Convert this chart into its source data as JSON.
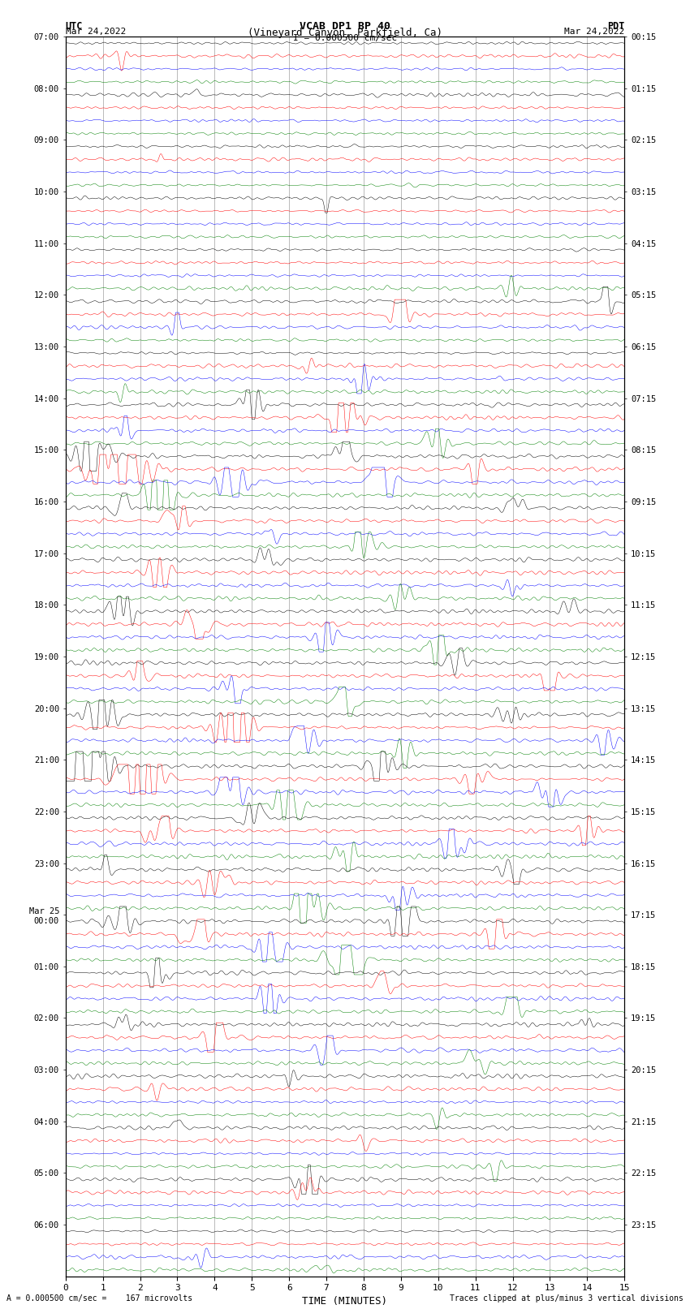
{
  "title_line1": "VCAB DP1 BP 40",
  "title_line2": "(Vineyard Canyon, Parkfield, Ca)",
  "scale_label": "I = 0.000500 cm/sec",
  "left_header": "UTC",
  "left_date": "Mar 24,2022",
  "right_header": "PDT",
  "right_date": "Mar 24,2022",
  "xlabel": "TIME (MINUTES)",
  "footer_left": "A = 0.000500 cm/sec =    167 microvolts",
  "footer_right": "Traces clipped at plus/minus 3 vertical divisions",
  "trace_colors": [
    "black",
    "red",
    "blue",
    "green"
  ],
  "x_ticks": [
    0,
    1,
    2,
    3,
    4,
    5,
    6,
    7,
    8,
    9,
    10,
    11,
    12,
    13,
    14,
    15
  ],
  "background_color": "white",
  "fig_width": 8.5,
  "fig_height": 16.13,
  "left_label_times": [
    "07:00",
    "08:00",
    "09:00",
    "10:00",
    "11:00",
    "12:00",
    "13:00",
    "14:00",
    "15:00",
    "16:00",
    "17:00",
    "18:00",
    "19:00",
    "20:00",
    "21:00",
    "22:00",
    "23:00",
    "Mar 25\n00:00",
    "01:00",
    "02:00",
    "03:00",
    "04:00",
    "05:00",
    "06:00"
  ],
  "right_label_times": [
    "00:15",
    "01:15",
    "02:15",
    "03:15",
    "04:15",
    "05:15",
    "06:15",
    "07:15",
    "08:15",
    "09:15",
    "10:15",
    "11:15",
    "12:15",
    "13:15",
    "14:15",
    "15:15",
    "16:15",
    "17:15",
    "18:15",
    "19:15",
    "20:15",
    "21:15",
    "22:15",
    "23:15"
  ],
  "num_hour_groups": 24,
  "traces_per_group": 4,
  "N": 3000,
  "noise_base": 0.012,
  "amp_scale": 0.38,
  "dpi": 100,
  "lw": 0.35
}
